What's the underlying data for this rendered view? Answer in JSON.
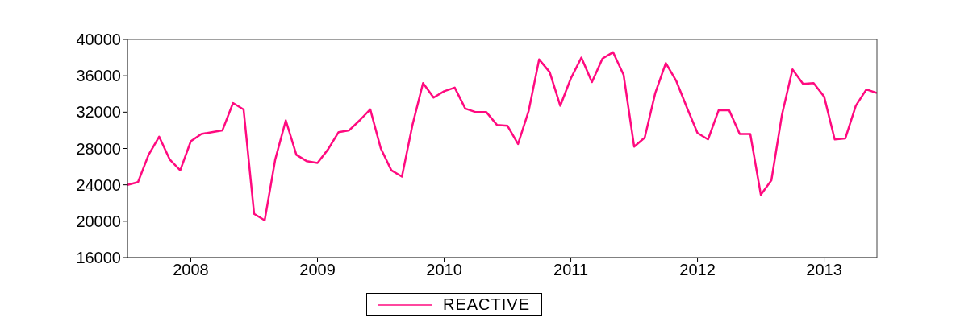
{
  "chart_data": {
    "type": "line",
    "x": [
      "2008-01",
      "2008-02",
      "2008-03",
      "2008-04",
      "2008-05",
      "2008-06",
      "2008-07",
      "2008-08",
      "2008-09",
      "2008-10",
      "2008-11",
      "2008-12",
      "2009-01",
      "2009-02",
      "2009-03",
      "2009-04",
      "2009-05",
      "2009-06",
      "2009-07",
      "2009-08",
      "2009-09",
      "2009-10",
      "2009-11",
      "2009-12",
      "2010-01",
      "2010-02",
      "2010-03",
      "2010-04",
      "2010-05",
      "2010-06",
      "2010-07",
      "2010-08",
      "2010-09",
      "2010-10",
      "2010-11",
      "2010-12",
      "2011-01",
      "2011-02",
      "2011-03",
      "2011-04",
      "2011-05",
      "2011-06",
      "2011-07",
      "2011-08",
      "2011-09",
      "2011-10",
      "2011-11",
      "2011-12",
      "2012-01",
      "2012-02",
      "2012-03",
      "2012-04",
      "2012-05",
      "2012-06",
      "2012-07",
      "2012-08",
      "2012-09",
      "2012-10",
      "2012-11",
      "2012-12",
      "2013-01",
      "2013-02",
      "2013-03",
      "2013-04",
      "2013-05",
      "2013-06",
      "2013-07",
      "2013-08",
      "2013-09",
      "2013-10",
      "2013-11",
      "2013-12"
    ],
    "series": [
      {
        "name": "REACTIVE",
        "color": "#ff0a7f",
        "values": [
          24000,
          24300,
          27300,
          29300,
          26800,
          25600,
          28800,
          29600,
          29800,
          30000,
          33000,
          32300,
          20800,
          20100,
          26800,
          31100,
          27300,
          26600,
          26400,
          27900,
          29800,
          30000,
          31100,
          32300,
          28000,
          25600,
          24900,
          30600,
          35200,
          33600,
          34300,
          34700,
          32400,
          32000,
          32000,
          30600,
          30500,
          28500,
          32100,
          37800,
          36400,
          32700,
          35700,
          38000,
          35300,
          37900,
          38600,
          36100,
          28200,
          29200,
          34100,
          37400,
          35400,
          32500,
          29700,
          29000,
          32200,
          32200,
          29600,
          29600,
          22900,
          24500,
          31700,
          36700,
          35100,
          35200,
          33700,
          29000,
          29100,
          32700,
          34500,
          34100
        ]
      }
    ],
    "xlim": [
      "2008-01",
      "2013-12"
    ],
    "xticks": [
      {
        "value": "2008-07",
        "label": "2008"
      },
      {
        "value": "2009-07",
        "label": "2009"
      },
      {
        "value": "2010-07",
        "label": "2010"
      },
      {
        "value": "2011-07",
        "label": "2011"
      },
      {
        "value": "2012-07",
        "label": "2012"
      },
      {
        "value": "2013-07",
        "label": "2013"
      }
    ],
    "ylim": [
      16000,
      40000
    ],
    "yticks": [
      16000,
      20000,
      24000,
      28000,
      32000,
      36000,
      40000
    ],
    "grid": false,
    "legend": "bottom",
    "marker": "none",
    "line_style": "solid"
  }
}
